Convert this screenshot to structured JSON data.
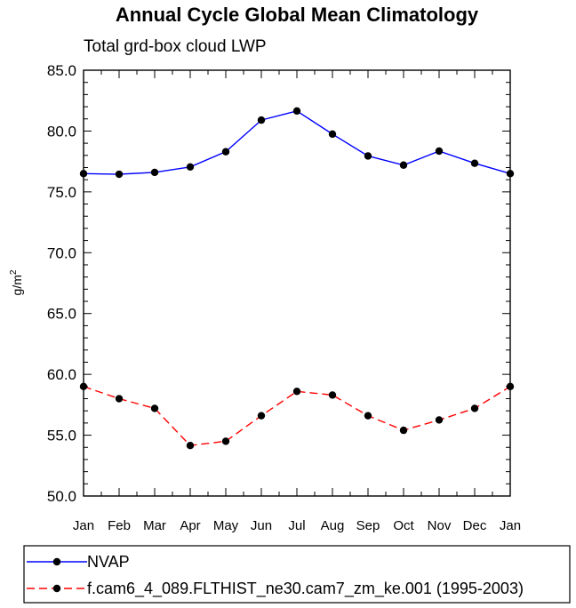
{
  "chart_data": {
    "type": "line",
    "title": "Annual Cycle Global Mean Climatology",
    "subtitle": "Total grd-box cloud LWP",
    "ylabel": "g/m",
    "ylabel_sup": "2",
    "xlabel": "",
    "categories": [
      "Jan",
      "Feb",
      "Mar",
      "Apr",
      "May",
      "Jun",
      "Jul",
      "Aug",
      "Sep",
      "Oct",
      "Nov",
      "Dec",
      "Jan"
    ],
    "ylim": [
      50.0,
      85.0
    ],
    "yticks": [
      "50.0",
      "55.0",
      "60.0",
      "65.0",
      "70.0",
      "75.0",
      "80.0",
      "85.0"
    ],
    "series": [
      {
        "name": "NVAP",
        "color": "#0000ff",
        "dashed": false,
        "values": [
          76.5,
          76.45,
          76.6,
          77.05,
          78.3,
          80.9,
          81.65,
          79.75,
          77.95,
          77.2,
          78.35,
          77.35,
          76.5
        ]
      },
      {
        "name": "f.cam6_4_089.FLTHIST_ne30.cam7_zm_ke.001 (1995-2003)",
        "color": "#ff0000",
        "dashed": true,
        "values": [
          59.0,
          58.0,
          57.2,
          54.15,
          54.5,
          56.6,
          58.6,
          58.3,
          56.6,
          55.4,
          56.25,
          57.2,
          59.0
        ]
      }
    ],
    "legend_position": "bottom-left"
  }
}
